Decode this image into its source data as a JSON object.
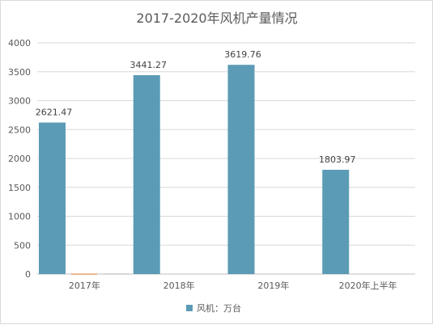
{
  "chart_data": {
    "type": "bar",
    "title": "2017-2020年风机产量情况",
    "categories": [
      "2017年",
      "2018年",
      "2019年",
      "2020年上半年"
    ],
    "series": [
      {
        "name": "风机：万台",
        "values": [
          2621.47,
          3441.27,
          3619.76,
          1803.97
        ],
        "labels": [
          "2621.47",
          "3441.27",
          "3619.76",
          "1803.97"
        ],
        "color": "#5b9bb5"
      }
    ],
    "small_bars": [
      {
        "category_index": 0,
        "values": [
          10,
          12
        ],
        "colors": [
          "#e8a36a",
          "#c9c9c9"
        ]
      }
    ],
    "ylim": [
      0,
      4000
    ],
    "yticks": [
      0,
      500,
      1000,
      1500,
      2000,
      2500,
      3000,
      3500,
      4000
    ],
    "grid": true,
    "legend": "bottom-center"
  }
}
